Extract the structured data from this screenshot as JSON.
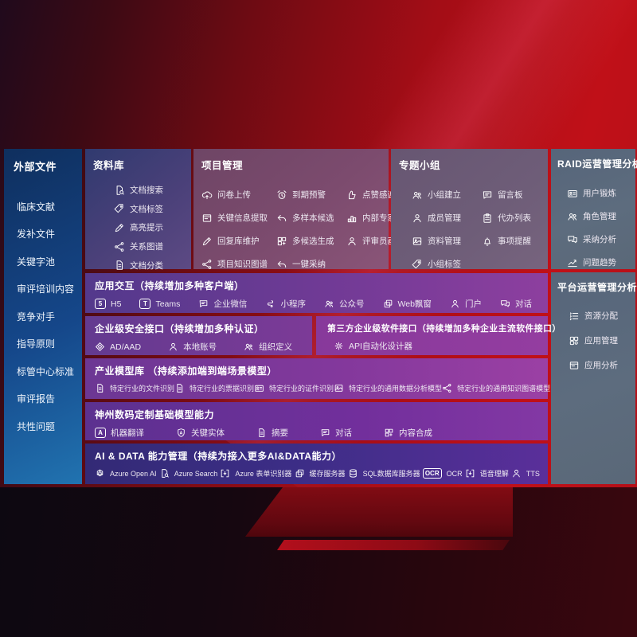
{
  "colors": {
    "background_red": "#b30d17",
    "sidebar_blue": "#1b5fa6",
    "repo_indigo": "#4a4079",
    "project_mauve": "#7c4b6e",
    "group_gray_purple": "#6e5d78",
    "slate_panel": "#5d6c7e",
    "row_purple": "#7c3598",
    "ai_row_indigo": "#3a2e7e",
    "text": "#ffffff"
  },
  "sidebar": {
    "title": "外部文件",
    "items": [
      "临床文献",
      "发补文件",
      "关键字池",
      "审评培训内容",
      "竞争对手",
      "指导原则",
      "标管中心标准",
      "审评报告",
      "共性问题"
    ]
  },
  "panels": {
    "repo": {
      "title": "资料库",
      "items": [
        {
          "label": "文档搜索",
          "icon": "document-search"
        },
        {
          "label": "文档标签",
          "icon": "document-tag"
        },
        {
          "label": "高亮提示",
          "icon": "highlight-pen"
        },
        {
          "label": "关系图谱",
          "icon": "relation-graph"
        },
        {
          "label": "文档分类",
          "icon": "document-classify"
        }
      ]
    },
    "project": {
      "title": "项目管理",
      "items": [
        {
          "label": "问卷上传",
          "icon": "cloud-upload"
        },
        {
          "label": "到期预警",
          "icon": "alarm-warning"
        },
        {
          "label": "点赞感谢",
          "icon": "thumbs-up"
        },
        {
          "label": "关键信息提取",
          "icon": "info-extract"
        },
        {
          "label": "多样本候选",
          "icon": "reply-arrow"
        },
        {
          "label": "内部专家排名",
          "icon": "expert-ranking"
        },
        {
          "label": "回复库维护",
          "icon": "pen-edit"
        },
        {
          "label": "多候选生成",
          "icon": "multi-generate"
        },
        {
          "label": "评审员画像",
          "icon": "person-portrait"
        },
        {
          "label": "项目知识图谱",
          "icon": "knowledge-graph"
        },
        {
          "label": "一键采纳",
          "icon": "adopt-arrow"
        }
      ]
    },
    "group": {
      "title": "专题小组",
      "items": [
        {
          "label": "小组建立",
          "icon": "group-people"
        },
        {
          "label": "留言板",
          "icon": "message-board"
        },
        {
          "label": "成员管理",
          "icon": "member-person"
        },
        {
          "label": "代办列表",
          "icon": "todo-clipboard"
        },
        {
          "label": "资料管理",
          "icon": "photo-album"
        },
        {
          "label": "事项提醒",
          "icon": "bell-reminder"
        },
        {
          "label": "小组标签",
          "icon": "group-tag"
        }
      ]
    },
    "raid": {
      "title": "RAID运营管理分析",
      "items": [
        {
          "label": "用户锻炼",
          "icon": "id-card"
        },
        {
          "label": "角色管理",
          "icon": "role-people"
        },
        {
          "label": "采纳分析",
          "icon": "chat-analysis"
        },
        {
          "label": "问题趋势",
          "icon": "trend-chart"
        }
      ]
    },
    "platform": {
      "title": "平台运营管理分析",
      "items": [
        {
          "label": "资源分配",
          "icon": "resource-list"
        },
        {
          "label": "应用管理",
          "icon": "app-grid"
        },
        {
          "label": "应用分析",
          "icon": "app-analysis"
        }
      ]
    }
  },
  "rows": {
    "interaction": {
      "title": "应用交互（持续增加多种客户端）",
      "items": [
        {
          "label": "H5",
          "icon": "html5"
        },
        {
          "label": "Teams",
          "icon": "teams"
        },
        {
          "label": "企业微信",
          "icon": "wechat-work"
        },
        {
          "label": "小程序",
          "icon": "mini-program"
        },
        {
          "label": "公众号",
          "icon": "official-account"
        },
        {
          "label": "Web飘窗",
          "icon": "web-window"
        },
        {
          "label": "门户",
          "icon": "portal-person"
        },
        {
          "label": "对话",
          "icon": "dialog-people"
        }
      ]
    },
    "security": {
      "title": "企业级安全接口（持续增加多种认证）",
      "items": [
        {
          "label": "AD/AAD",
          "icon": "ad-diamond"
        },
        {
          "label": "本地账号",
          "icon": "local-account"
        },
        {
          "label": "组织定义",
          "icon": "org-people"
        }
      ]
    },
    "thirdparty": {
      "title": "第三方企业级软件接口（持续增加多种企业主流软件接口）",
      "items": [
        {
          "label": "API自动化设计器",
          "icon": "api-gear"
        }
      ]
    },
    "models": {
      "title": "产业模型库 （持续添加端到端场景模型）",
      "items": [
        {
          "label": "特定行业的文件识别",
          "icon": "file-doc"
        },
        {
          "label": "特定行业的票据识别",
          "icon": "bill-doc"
        },
        {
          "label": "特定行业的证件识别",
          "icon": "cert-card"
        },
        {
          "label": "特定行业的通用数据分析模型",
          "icon": "data-image"
        },
        {
          "label": "特定行业的通用知识图谱模型",
          "icon": "graph-model"
        }
      ]
    },
    "basemodel": {
      "title": "神州数码定制基础模型能力",
      "items": [
        {
          "label": "机器翻译",
          "icon": "translate"
        },
        {
          "label": "关键实体",
          "icon": "entity-shield"
        },
        {
          "label": "摘要",
          "icon": "summary-doc"
        },
        {
          "label": "对话",
          "icon": "chat-bubble"
        },
        {
          "label": "内容合成",
          "icon": "content-grid"
        }
      ]
    },
    "aidata": {
      "title": "AI & DATA 能力管理（持续为接入更多AI&DATA能力）",
      "items": [
        {
          "label": "Azure Open AI",
          "icon": "openai"
        },
        {
          "label": "Azure Search",
          "icon": "azure-search"
        },
        {
          "label": "Azure 表单识别器",
          "icon": "form-recognizer"
        },
        {
          "label": "缓存服务器",
          "icon": "cache-server"
        },
        {
          "label": "SQL数据库服务器",
          "icon": "sql-database"
        },
        {
          "label": "OCR",
          "icon": "ocr"
        },
        {
          "label": "语音理解",
          "icon": "speech-understand"
        },
        {
          "label": "TTS",
          "icon": "tts"
        }
      ]
    }
  }
}
